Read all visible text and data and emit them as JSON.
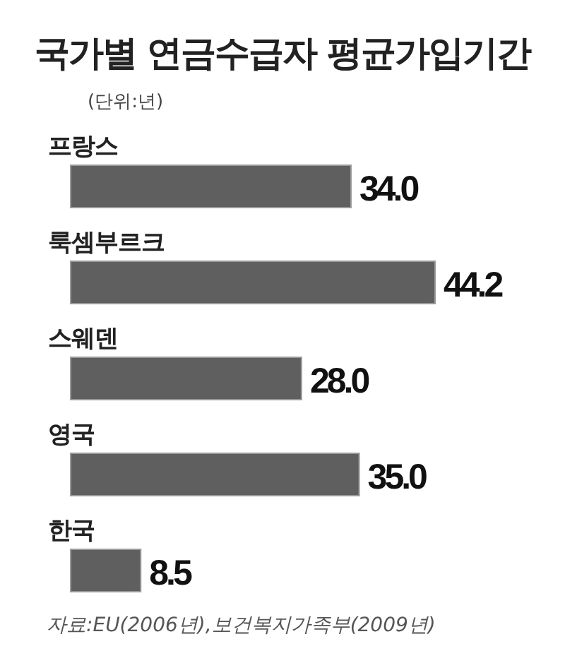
{
  "chart_data": {
    "type": "bar",
    "orientation": "horizontal",
    "title": "국가별 연금수급자 평균가입기간",
    "subtitle": "(단위:년)",
    "categories": [
      "프랑스",
      "룩셈부르크",
      "스웨덴",
      "영국",
      "한국"
    ],
    "values": [
      34.0,
      44.2,
      28.0,
      35.0,
      8.5
    ],
    "value_labels": [
      "34.0",
      "44.2",
      "28.0",
      "35.0",
      "8.5"
    ],
    "color": "#5f5f5f",
    "annotations": [
      "자료:EU(2006년),보건복지가족부(2009년)"
    ]
  }
}
